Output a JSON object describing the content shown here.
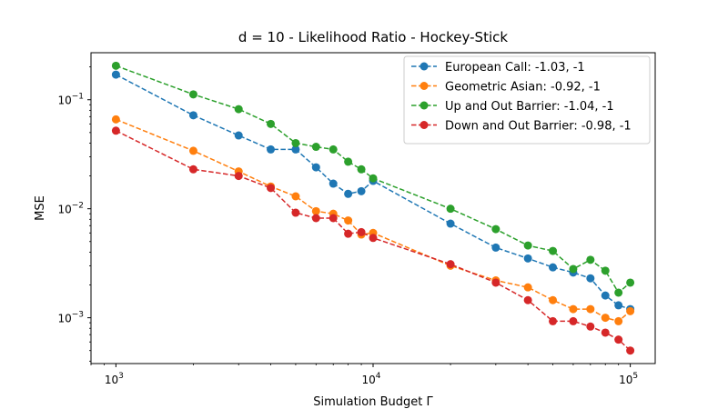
{
  "chart_data": {
    "type": "line",
    "title": "d = 10 - Likelihood Ratio - Hockey-Stick",
    "xlabel": "Simulation Budget Γ",
    "ylabel": "MSE",
    "xscale": "log",
    "yscale": "log",
    "xlim": [
      800,
      125000
    ],
    "ylim": [
      0.00038,
      0.27
    ],
    "grid": false,
    "legend_position": "top-right",
    "line_style": "dashed",
    "marker": "circle",
    "x_ticks": [
      {
        "base": "10",
        "exp": "3",
        "value": 1000
      },
      {
        "base": "10",
        "exp": "4",
        "value": 10000
      },
      {
        "base": "10",
        "exp": "5",
        "value": 100000
      }
    ],
    "y_ticks": [
      {
        "base": "10",
        "exp": "−1",
        "value": 0.1
      },
      {
        "base": "10",
        "exp": "−2",
        "value": 0.01
      },
      {
        "base": "10",
        "exp": "−3",
        "value": 0.001
      }
    ],
    "x": [
      1000,
      2000,
      3000,
      4000,
      5000,
      6000,
      7000,
      8000,
      9000,
      10000,
      20000,
      30000,
      40000,
      50000,
      60000,
      70000,
      80000,
      90000,
      100000
    ],
    "series": [
      {
        "name": "European Call: -1.03, -1",
        "color": "#1f77b4",
        "values": [
          0.17,
          0.072,
          0.047,
          0.035,
          0.035,
          0.024,
          0.017,
          0.0137,
          0.0145,
          0.018,
          0.0073,
          0.0044,
          0.0035,
          0.0029,
          0.0026,
          0.0023,
          0.0016,
          0.0013,
          0.0012
        ]
      },
      {
        "name": "Geometric Asian: -0.92, -1",
        "color": "#ff7f0e",
        "values": [
          0.066,
          0.034,
          0.022,
          0.016,
          0.013,
          0.0095,
          0.009,
          0.0078,
          0.0058,
          0.006,
          0.003,
          0.0022,
          0.0019,
          0.00145,
          0.0012,
          0.0012,
          0.001,
          0.00093,
          0.00115
        ]
      },
      {
        "name": "Up and Out Barrier: -1.04, -1",
        "color": "#2ca02c",
        "values": [
          0.205,
          0.112,
          0.082,
          0.06,
          0.04,
          0.037,
          0.035,
          0.027,
          0.023,
          0.019,
          0.01,
          0.0065,
          0.0046,
          0.0041,
          0.0028,
          0.0034,
          0.0027,
          0.0017,
          0.0021
        ]
      },
      {
        "name": "Down and Out Barrier: -0.98, -1",
        "color": "#d62728",
        "values": [
          0.052,
          0.023,
          0.02,
          0.0155,
          0.0092,
          0.0082,
          0.0082,
          0.0059,
          0.0061,
          0.0054,
          0.0031,
          0.0021,
          0.00145,
          0.00093,
          0.00093,
          0.00083,
          0.00073,
          0.00063,
          0.0005
        ]
      }
    ]
  }
}
